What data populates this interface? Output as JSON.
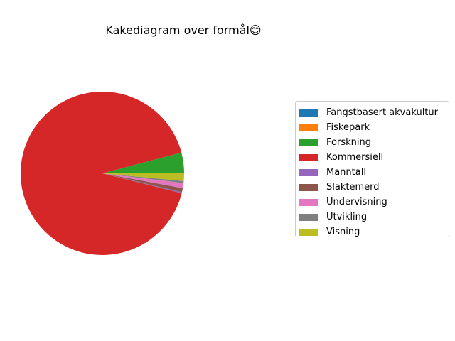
{
  "chart_data": {
    "type": "pie",
    "title": "Kakediagram over formål😊",
    "legend_position": "right",
    "start_angle_deg": 0,
    "direction": "counterclockwise",
    "slices": [
      {
        "label": "Fangstbasert akvakultur",
        "value": 0.05,
        "color": "#1f77b4"
      },
      {
        "label": "Fiskepark",
        "value": 0.05,
        "color": "#ff7f0e"
      },
      {
        "label": "Forskning",
        "value": 4.0,
        "color": "#2ca02c"
      },
      {
        "label": "Kommersiell",
        "value": 92.0,
        "color": "#d62728"
      },
      {
        "label": "Manntall",
        "value": 0.2,
        "color": "#9467bd"
      },
      {
        "label": "Slaktemerd",
        "value": 0.8,
        "color": "#8c564b"
      },
      {
        "label": "Undervisning",
        "value": 1.0,
        "color": "#e377c2"
      },
      {
        "label": "Utvikling",
        "value": 0.4,
        "color": "#7f7f7f"
      },
      {
        "label": "Visning",
        "value": 1.5,
        "color": "#bcbd22"
      }
    ]
  }
}
